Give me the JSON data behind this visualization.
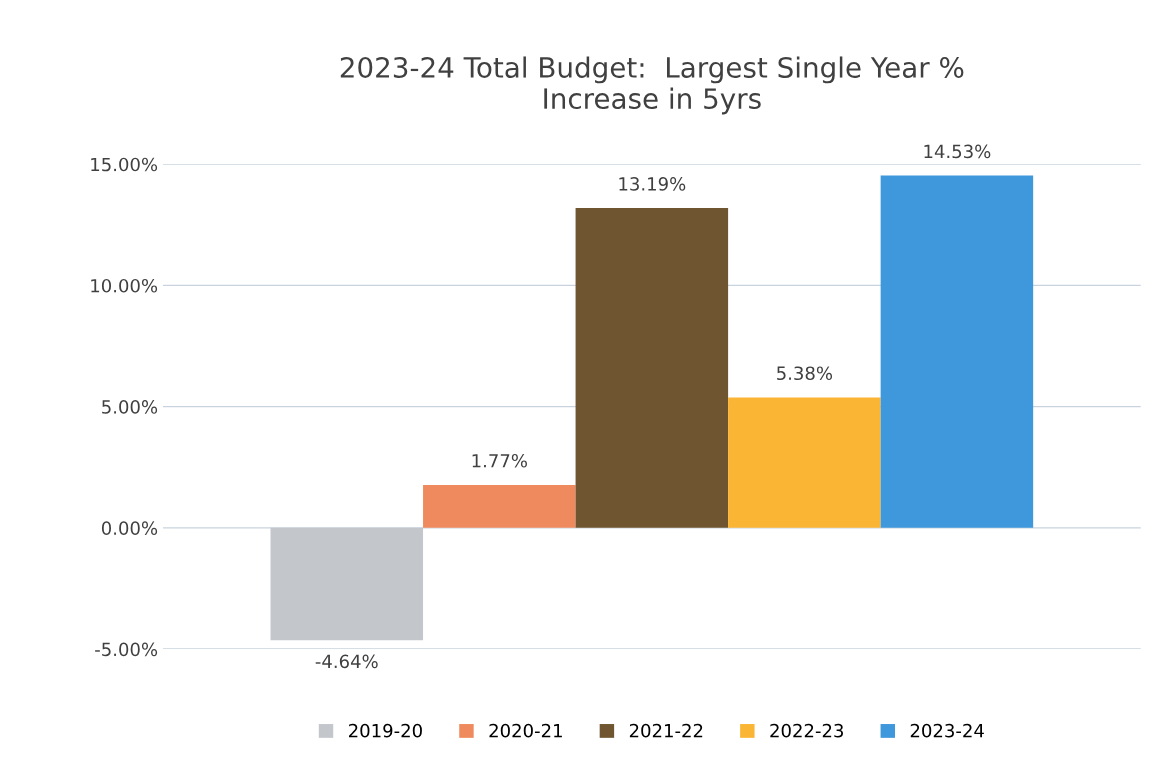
{
  "chart_data": {
    "type": "bar",
    "title": "2023-24 Total Budget:  Largest Single Year %\nIncrease in 5yrs",
    "categories": [
      null
    ],
    "series": [
      {
        "name": "2019-20",
        "color": "#c3c7cc",
        "values": [
          -4.64
        ],
        "value_labels": [
          "-4.64%"
        ]
      },
      {
        "name": "2020-21",
        "color": "#ef8a5e",
        "values": [
          1.77
        ],
        "value_labels": [
          "1.77%"
        ]
      },
      {
        "name": "2021-22",
        "color": "#6f5630",
        "values": [
          13.19
        ],
        "value_labels": [
          "13.19%"
        ]
      },
      {
        "name": "2022-23",
        "color": "#fbb535",
        "values": [
          5.38
        ],
        "value_labels": [
          "5.38%"
        ]
      },
      {
        "name": "2023-24",
        "color": "#3f97dc",
        "values": [
          14.53
        ],
        "value_labels": [
          "14.53%"
        ]
      }
    ],
    "ylim": [
      -5,
      15
    ],
    "yticks": [
      {
        "value": -5,
        "label": "-5.00%"
      },
      {
        "value": 0,
        "label": "0.00%"
      },
      {
        "value": 5,
        "label": "5.00%"
      },
      {
        "value": 10,
        "label": "10.00%"
      },
      {
        "value": 15,
        "label": "15.00%"
      }
    ],
    "grid": "y",
    "legend": "bottom"
  }
}
